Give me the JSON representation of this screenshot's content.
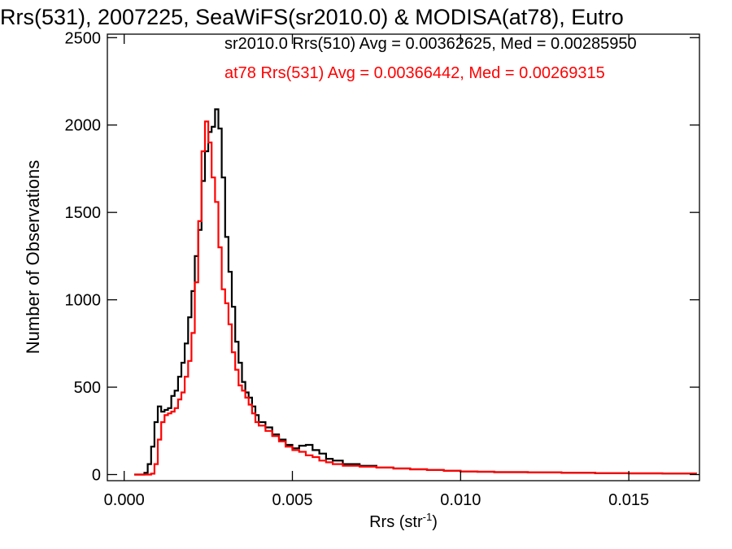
{
  "chart_data": {
    "type": "line",
    "title": "Rrs(531), 2007225, SeaWiFS(sr2010.0) & MODISA(at78), Eutro",
    "xlabel_main": "Rrs (str",
    "xlabel_sup": "-1",
    "xlabel_close": ")",
    "ylabel": "Number of Observations",
    "xlim": [
      -0.0005,
      0.0171
    ],
    "ylim": [
      -35,
      2520
    ],
    "xticks": [
      0.0,
      0.005,
      0.01,
      0.015
    ],
    "xtick_labels": [
      "0.000",
      "0.005",
      "0.010",
      "0.015"
    ],
    "yticks": [
      0,
      500,
      1000,
      1500,
      2000,
      2500
    ],
    "ytick_labels": [
      "0",
      "500",
      "1000",
      "1500",
      "2000",
      "2500"
    ],
    "grid": false,
    "colors": {
      "series1": "#000000",
      "series2": "#ff0000",
      "axes": "#000000"
    },
    "annotations": [
      {
        "text": "sr2010.0 Rrs(510) Avg = 0.00362625, Med = 0.00285950",
        "color": "#000000"
      },
      {
        "text": "at78 Rrs(531) Avg = 0.00366442, Med = 0.00269315",
        "color": "#ff0000"
      }
    ],
    "series": [
      {
        "color": "#000000",
        "x": [
          0.0003,
          0.0006,
          0.0007,
          0.0008,
          0.0009,
          0.001,
          0.0011,
          0.0012,
          0.0013,
          0.0014,
          0.0015,
          0.0016,
          0.0017,
          0.0018,
          0.0019,
          0.002,
          0.0021,
          0.0022,
          0.0023,
          0.0024,
          0.0025,
          0.0026,
          0.0027,
          0.0028,
          0.0029,
          0.003,
          0.0031,
          0.0032,
          0.0033,
          0.0034,
          0.0035,
          0.0036,
          0.0037,
          0.0038,
          0.0039,
          0.004,
          0.0042,
          0.0044,
          0.0046,
          0.0048,
          0.005,
          0.0052,
          0.0054,
          0.0056,
          0.0058,
          0.006,
          0.0062,
          0.0065,
          0.007,
          0.0075,
          0.008,
          0.0085,
          0.009,
          0.0095,
          0.01,
          0.0105,
          0.011,
          0.012,
          0.013,
          0.014,
          0.015,
          0.016,
          0.017
        ],
        "y": [
          0,
          10,
          60,
          160,
          300,
          390,
          360,
          370,
          380,
          450,
          480,
          560,
          640,
          750,
          900,
          1050,
          1250,
          1400,
          1680,
          1850,
          1960,
          1990,
          2090,
          1980,
          1700,
          1360,
          1160,
          960,
          760,
          640,
          530,
          470,
          440,
          390,
          340,
          300,
          270,
          230,
          200,
          170,
          150,
          165,
          170,
          140,
          120,
          90,
          80,
          60,
          50,
          40,
          35,
          30,
          26,
          22,
          18,
          16,
          14,
          12,
          10,
          8,
          7,
          6,
          5
        ]
      },
      {
        "color": "#ff0000",
        "x": [
          0.0003,
          0.0006,
          0.0008,
          0.0009,
          0.001,
          0.0011,
          0.0012,
          0.0013,
          0.0014,
          0.0015,
          0.0016,
          0.0017,
          0.0018,
          0.0019,
          0.002,
          0.0021,
          0.0022,
          0.0023,
          0.0024,
          0.0025,
          0.0026,
          0.0027,
          0.0028,
          0.0029,
          0.003,
          0.0031,
          0.0032,
          0.0033,
          0.0034,
          0.0035,
          0.0036,
          0.0037,
          0.0038,
          0.0039,
          0.004,
          0.0042,
          0.0044,
          0.0046,
          0.0048,
          0.005,
          0.0052,
          0.0054,
          0.0056,
          0.0058,
          0.006,
          0.0062,
          0.0065,
          0.007,
          0.0075,
          0.008,
          0.0085,
          0.009,
          0.0095,
          0.01,
          0.0105,
          0.011,
          0.012,
          0.013,
          0.014,
          0.015,
          0.016,
          0.017
        ],
        "y": [
          0,
          0,
          5,
          60,
          200,
          300,
          340,
          350,
          360,
          380,
          430,
          470,
          560,
          650,
          810,
          1100,
          1450,
          1850,
          2020,
          1900,
          1700,
          1560,
          1300,
          1060,
          980,
          860,
          700,
          600,
          510,
          480,
          440,
          400,
          350,
          300,
          280,
          250,
          220,
          190,
          160,
          140,
          130,
          110,
          100,
          80,
          70,
          60,
          50,
          45,
          40,
          35,
          30,
          26,
          22,
          18,
          16,
          14,
          12,
          10,
          8,
          7,
          6,
          5
        ]
      }
    ]
  }
}
